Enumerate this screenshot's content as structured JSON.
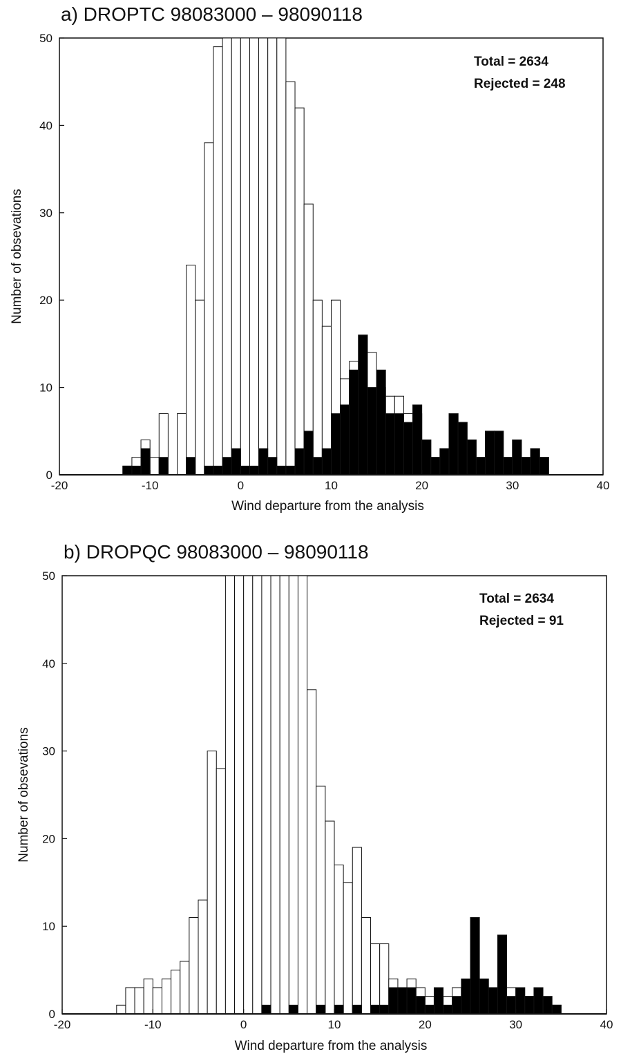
{
  "chart_data": [
    {
      "type": "bar",
      "panel": "a",
      "title": "a) DROPTC  98083000 – 98090118",
      "xlabel": "Wind departure from the analysis",
      "ylabel": "Number of obsevations",
      "xlim": [
        -20,
        40
      ],
      "ylim": [
        0,
        50
      ],
      "xticks": [
        "-20",
        "-10",
        "0",
        "10",
        "20",
        "30",
        "40"
      ],
      "yticks": [
        "0",
        "10",
        "20",
        "30",
        "40",
        "50"
      ],
      "bin_width": 1,
      "annotations": [
        "Total = 2634",
        "Rejected = 248"
      ],
      "series": [
        {
          "name": "",
          "fill": "#ffffff",
          "x": [
            -14,
            -13,
            -12,
            -11,
            -10,
            -9,
            -8,
            -7,
            -6,
            -5,
            -4,
            -3,
            -2,
            -1,
            0,
            1,
            2,
            3,
            4,
            5,
            6,
            7,
            8,
            9,
            10,
            11,
            12,
            13,
            14,
            15,
            16,
            17,
            18,
            19,
            20,
            21,
            22,
            23,
            24,
            25,
            26,
            27,
            28,
            29,
            30,
            31,
            32,
            33
          ],
          "values": [
            0,
            1,
            2,
            4,
            2,
            7,
            0,
            7,
            24,
            20,
            38,
            49,
            50,
            50,
            50,
            50,
            50,
            50,
            50,
            45,
            42,
            31,
            20,
            17,
            20,
            11,
            13,
            16,
            14,
            10,
            9,
            9,
            7,
            7,
            4,
            2,
            3,
            7,
            6,
            4,
            2,
            5,
            5,
            2,
            4,
            2,
            3,
            2
          ]
        },
        {
          "name": "",
          "fill": "#000000",
          "x": [
            -14,
            -13,
            -12,
            -11,
            -10,
            -9,
            -8,
            -7,
            -6,
            -5,
            -4,
            -3,
            -2,
            -1,
            0,
            1,
            2,
            3,
            4,
            5,
            6,
            7,
            8,
            9,
            10,
            11,
            12,
            13,
            14,
            15,
            16,
            17,
            18,
            19,
            20,
            21,
            22,
            23,
            24,
            25,
            26,
            27,
            28,
            29,
            30,
            31,
            32,
            33
          ],
          "values": [
            0,
            1,
            1,
            3,
            0,
            2,
            0,
            0,
            2,
            0,
            1,
            1,
            2,
            3,
            1,
            1,
            3,
            2,
            1,
            1,
            3,
            5,
            2,
            3,
            7,
            8,
            12,
            16,
            10,
            12,
            7,
            7,
            6,
            8,
            4,
            2,
            3,
            7,
            6,
            4,
            2,
            5,
            5,
            2,
            4,
            2,
            3,
            2
          ]
        }
      ]
    },
    {
      "type": "bar",
      "panel": "b",
      "title": "b) DROPQC  98083000 – 98090118",
      "xlabel": "Wind departure from the analysis",
      "ylabel": "Number of obsevations",
      "xlim": [
        -20,
        40
      ],
      "ylim": [
        0,
        50
      ],
      "xticks": [
        "-20",
        "-10",
        "0",
        "10",
        "20",
        "30",
        "40"
      ],
      "yticks": [
        "0",
        "10",
        "20",
        "30",
        "40",
        "50"
      ],
      "bin_width": 1,
      "annotations": [
        "Total = 2634",
        "Rejected = 91"
      ],
      "series": [
        {
          "name": "",
          "fill": "#ffffff",
          "x": [
            -15,
            -14,
            -13,
            -12,
            -11,
            -10,
            -9,
            -8,
            -7,
            -6,
            -5,
            -4,
            -3,
            -2,
            -1,
            0,
            1,
            2,
            3,
            4,
            5,
            6,
            7,
            8,
            9,
            10,
            11,
            12,
            13,
            14,
            15,
            16,
            17,
            18,
            19,
            20,
            21,
            22,
            23,
            24,
            25,
            26,
            27,
            28,
            29,
            30,
            31,
            32,
            33,
            34
          ],
          "values": [
            0,
            1,
            3,
            3,
            4,
            3,
            4,
            5,
            6,
            11,
            13,
            30,
            28,
            50,
            50,
            50,
            50,
            50,
            50,
            50,
            50,
            50,
            37,
            26,
            22,
            17,
            15,
            19,
            11,
            8,
            8,
            4,
            3,
            4,
            3,
            2,
            2,
            2,
            3,
            3,
            2,
            2,
            3,
            2,
            3,
            2,
            2,
            2,
            1,
            1
          ]
        },
        {
          "name": "",
          "fill": "#000000",
          "x": [
            -15,
            -14,
            -13,
            -12,
            -11,
            -10,
            -9,
            -8,
            -7,
            -6,
            -5,
            -4,
            -3,
            -2,
            -1,
            0,
            1,
            2,
            3,
            4,
            5,
            6,
            7,
            8,
            9,
            10,
            11,
            12,
            13,
            14,
            15,
            16,
            17,
            18,
            19,
            20,
            21,
            22,
            23,
            24,
            25,
            26,
            27,
            28,
            29,
            30,
            31,
            32,
            33,
            34
          ],
          "values": [
            0,
            0,
            0,
            0,
            0,
            0,
            0,
            0,
            0,
            0,
            0,
            0,
            0,
            0,
            0,
            0,
            0,
            1,
            0,
            0,
            1,
            0,
            0,
            1,
            0,
            1,
            0,
            1,
            0,
            1,
            1,
            3,
            3,
            3,
            2,
            1,
            3,
            1,
            2,
            4,
            11,
            4,
            3,
            9,
            2,
            3,
            2,
            3,
            2,
            1
          ]
        }
      ]
    }
  ]
}
